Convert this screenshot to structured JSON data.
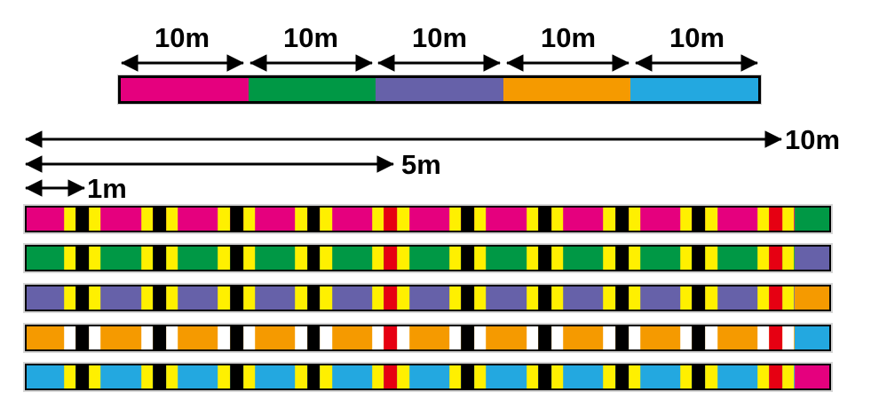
{
  "top_bar": {
    "segments": [
      {
        "label": "10m",
        "color": "#E5007E",
        "name": "pink"
      },
      {
        "label": "10m",
        "color": "#009845",
        "name": "green"
      },
      {
        "label": "10m",
        "color": "#6661A9",
        "name": "purple"
      },
      {
        "label": "10m",
        "color": "#F59A00",
        "name": "orange"
      },
      {
        "label": "10m",
        "color": "#23A8E0",
        "name": "blue"
      }
    ]
  },
  "scale_arrows": {
    "ten": {
      "label": "10m",
      "length_m": 10
    },
    "five": {
      "label": "5m",
      "length_m": 5
    },
    "one": {
      "label": "1m",
      "length_m": 1
    }
  },
  "marker": {
    "positions_m": [
      1,
      2,
      3,
      4,
      5,
      6,
      7,
      8,
      9,
      10
    ],
    "accent_positions_m": [
      5,
      10
    ],
    "normal_center_color": "#000000",
    "accent_center_color": "#E60012"
  },
  "striped_bars": [
    {
      "name": "pink-10m",
      "base": "#E5007E",
      "tick": "#FFF000",
      "tail": "#009845"
    },
    {
      "name": "green-10m",
      "base": "#009845",
      "tick": "#FFF000",
      "tail": "#6661A9"
    },
    {
      "name": "purple-10m",
      "base": "#6661A9",
      "tick": "#FFF000",
      "tail": "#F59A00"
    },
    {
      "name": "orange-10m",
      "base": "#F59A00",
      "tick": "#FFFFFF",
      "tail": "#23A8E0"
    },
    {
      "name": "blue-10m",
      "base": "#23A8E0",
      "tick": "#FFF000",
      "tail": "#E5007E"
    }
  ]
}
